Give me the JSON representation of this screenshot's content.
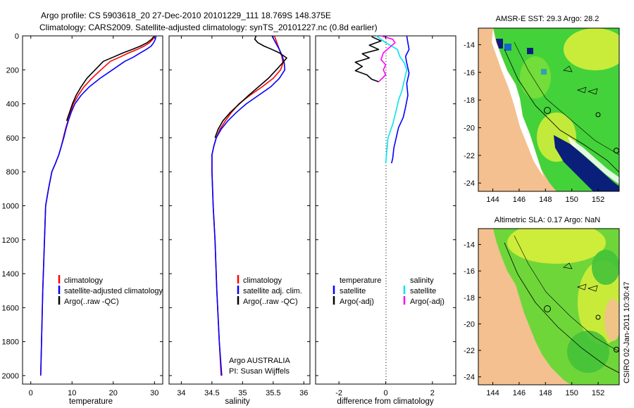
{
  "header": {
    "line1": "Argo profile: CS 5903618_20 27-Dec-2010 20101229_111 18.769S 148.375E",
    "line2": "Climatology: CARS2009. Satellite-adjusted climatology: synTS_20101227.nc (0.8d earlier)"
  },
  "colors": {
    "climatology": "#ff0000",
    "satellite": "#0000ff",
    "argo": "#000000",
    "salinity_sat": "#00e5ee",
    "salinity_argo": "#ff00ff",
    "land": "#f4c08f",
    "sea_green": "#44d23a",
    "sea_yellow": "#d8ee3b"
  },
  "chart_data": [
    {
      "type": "line",
      "name": "temperature-profile",
      "xlabel": "temperature",
      "ylabel": "",
      "xlim": [
        -2,
        32
      ],
      "ylim": [
        2050,
        0
      ],
      "xticks": [
        0,
        10,
        20,
        30
      ],
      "xtick_labels": [
        "0",
        "10",
        "20",
        "30"
      ],
      "yticks": [
        0,
        200,
        400,
        600,
        800,
        1000,
        1200,
        1400,
        1600,
        1800,
        2000
      ],
      "ytick_labels": [
        "0",
        "200",
        "400",
        "600",
        "800",
        "1000",
        "1200",
        "1400",
        "1600",
        "1800",
        "2000"
      ],
      "legend": [
        "climatology",
        "satellite-adjusted climatology",
        "Argo(..raw -QC)"
      ],
      "legend_location": "lower-center",
      "series": [
        {
          "name": "climatology",
          "color": "#ff0000",
          "x": [
            30.0,
            29.6,
            28.8,
            27.5,
            25.8,
            23.8,
            21.6,
            19.3,
            17.0,
            14.8,
            12.9,
            11.5,
            10.3,
            9.6,
            9.0,
            8.4,
            7.9,
            7.4,
            6.8,
            6.0,
            5.1,
            4.3,
            3.6,
            2.9,
            2.4
          ],
          "y": [
            0,
            20,
            40,
            60,
            80,
            100,
            125,
            150,
            200,
            250,
            300,
            350,
            400,
            450,
            500,
            550,
            600,
            650,
            700,
            750,
            800,
            900,
            1000,
            1500,
            2000
          ]
        },
        {
          "name": "satellite-adjusted climatology",
          "color": "#0000ff",
          "x": [
            30.4,
            30.2,
            29.8,
            29.2,
            28.0,
            26.6,
            24.9,
            22.8,
            19.8,
            16.8,
            14.2,
            12.2,
            10.7,
            9.8,
            9.1,
            8.5,
            8.0,
            7.4,
            6.8,
            6.0,
            5.1,
            4.3,
            3.6,
            2.9,
            2.4
          ],
          "y": [
            0,
            20,
            40,
            60,
            80,
            100,
            125,
            150,
            200,
            250,
            300,
            350,
            400,
            450,
            500,
            550,
            600,
            650,
            700,
            750,
            800,
            900,
            1000,
            1500,
            2000
          ]
        },
        {
          "name": "Argo(..raw -QC)",
          "color": "#000000",
          "x": [
            29.8,
            29.3,
            28.2,
            26.6,
            24.6,
            22.4,
            20.0,
            17.6,
            15.6,
            13.6,
            12.2,
            11.0,
            10.1,
            9.4,
            8.7
          ],
          "y": [
            5,
            20,
            40,
            60,
            80,
            100,
            125,
            150,
            200,
            250,
            300,
            350,
            400,
            450,
            500
          ]
        }
      ]
    },
    {
      "type": "line",
      "name": "salinity-profile",
      "xlabel": "salinity",
      "ylabel": "",
      "xlim": [
        33.8,
        36.1
      ],
      "ylim": [
        2050,
        0
      ],
      "xticks": [
        34,
        34.5,
        35,
        35.5,
        36
      ],
      "xtick_labels": [
        "34",
        "34.5",
        "35",
        "35.5",
        "36"
      ],
      "legend": [
        "climatology",
        "satellite adj. clim.",
        "Argo(..raw -QC)"
      ],
      "legend_location": "lower-center",
      "series": [
        {
          "name": "climatology",
          "color": "#ff0000",
          "x": [
            35.52,
            35.56,
            35.6,
            35.64,
            35.66,
            35.62,
            35.5,
            35.32,
            35.12,
            34.94,
            34.82,
            34.72,
            34.63,
            34.57,
            34.53,
            34.5,
            34.5,
            34.52,
            34.55,
            34.58,
            34.62,
            34.65
          ],
          "y": [
            0,
            40,
            80,
            120,
            160,
            200,
            250,
            300,
            350,
            400,
            450,
            500,
            550,
            600,
            650,
            700,
            800,
            1000,
            1200,
            1500,
            1800,
            2000
          ]
        },
        {
          "name": "satellite adj. clim.",
          "color": "#0000ff",
          "x": [
            35.48,
            35.54,
            35.6,
            35.65,
            35.68,
            35.69,
            35.6,
            35.46,
            35.26,
            35.06,
            34.9,
            34.76,
            34.65,
            34.57,
            34.53,
            34.5,
            34.5,
            34.52,
            34.55,
            34.58,
            34.62,
            34.66
          ],
          "y": [
            0,
            40,
            80,
            120,
            160,
            200,
            250,
            300,
            350,
            400,
            450,
            500,
            550,
            600,
            650,
            700,
            800,
            1000,
            1200,
            1500,
            1800,
            2000
          ]
        },
        {
          "name": "Argo(..raw -QC)",
          "color": "#000000",
          "x": [
            35.22,
            35.2,
            35.25,
            35.35,
            35.48,
            35.6,
            35.72,
            35.65,
            35.55,
            35.42,
            35.26,
            35.1,
            34.95,
            34.8,
            34.68,
            34.6,
            34.55
          ],
          "y": [
            0,
            20,
            40,
            60,
            80,
            100,
            130,
            160,
            200,
            250,
            300,
            350,
            400,
            450,
            500,
            550,
            600
          ]
        }
      ]
    },
    {
      "type": "line",
      "name": "difference-profile",
      "xlabel": "difference from climatology",
      "ylabel": "",
      "xlim": [
        -3,
        3
      ],
      "ylim": [
        2050,
        0
      ],
      "xticks": [
        -2,
        0,
        2
      ],
      "xtick_labels": [
        "-2",
        "0",
        "2"
      ],
      "legend": [
        "temperature",
        "satellite",
        "Argo(-adj)",
        "salinity",
        "satellite",
        "Argo(-adj)"
      ],
      "legend_location": "lower-center",
      "series": [
        {
          "name": "temperature satellite",
          "color": "#0000ff",
          "x": [
            0.9,
            0.95,
            1.0,
            0.85,
            0.9,
            1.0,
            0.9,
            0.95,
            0.85,
            0.75,
            0.55,
            0.45,
            0.35,
            0.3,
            0.25
          ],
          "y": [
            0,
            40,
            80,
            120,
            160,
            220,
            280,
            350,
            420,
            480,
            540,
            600,
            660,
            720,
            750
          ]
        },
        {
          "name": "temperature Argo(-adj)",
          "color": "#000000",
          "x": [
            -0.6,
            -0.2,
            -0.7,
            -0.3,
            -1.0,
            -0.7,
            -1.3,
            -1.0,
            -1.3,
            -0.8,
            -0.6,
            -0.3
          ],
          "y": [
            5,
            30,
            55,
            80,
            105,
            130,
            155,
            180,
            205,
            230,
            255,
            270
          ]
        },
        {
          "name": "salinity satellite",
          "color": "#00e5ee",
          "x": [
            -0.4,
            0.0,
            0.5,
            0.6,
            0.8,
            0.9,
            0.8,
            0.7,
            0.55,
            0.45,
            0.3,
            0.1,
            0.0
          ],
          "y": [
            0,
            40,
            80,
            120,
            160,
            200,
            260,
            320,
            380,
            440,
            520,
            600,
            750
          ]
        },
        {
          "name": "salinity Argo(-adj)",
          "color": "#ff00ff",
          "x": [
            -0.2,
            0.3,
            0.4,
            -0.1,
            -0.2,
            0.0,
            -0.1,
            0.0,
            -0.3
          ],
          "y": [
            0,
            20,
            40,
            100,
            140,
            170,
            200,
            230,
            270
          ]
        }
      ]
    }
  ],
  "panels": {
    "temperature": {
      "legend": {
        "climatology": "climatology",
        "satellite": "satellite-adjusted climatology",
        "argo": "Argo(..raw -QC)"
      }
    },
    "salinity": {
      "legend": {
        "climatology": "climatology",
        "satellite": "satellite adj. clim.",
        "argo": "Argo(..raw -QC)"
      },
      "annotation1": "Argo AUSTRALIA",
      "annotation2": "PI: Susan Wijffels"
    },
    "difference": {
      "legend": {
        "temp_header": "temperature",
        "temp_sat": "satellite",
        "temp_argo": "Argo(-adj)",
        "sal_header": "salinity",
        "sal_sat": "satellite",
        "sal_argo": "Argo(-adj)"
      }
    }
  },
  "maps": {
    "xtick_labels": [
      "144",
      "146",
      "148",
      "150",
      "152"
    ],
    "ytick_labels": [
      "-14",
      "-16",
      "-18",
      "-20",
      "-22",
      "-24"
    ],
    "sst": {
      "title": "AMSR-E SST: 29.3 Argo: 28.2"
    },
    "sla": {
      "title": "Altimetric SLA: 0.17 Argo: NaN"
    }
  },
  "footer": {
    "credit": "CSIRO 02-Jan-2011 10:30:47"
  }
}
